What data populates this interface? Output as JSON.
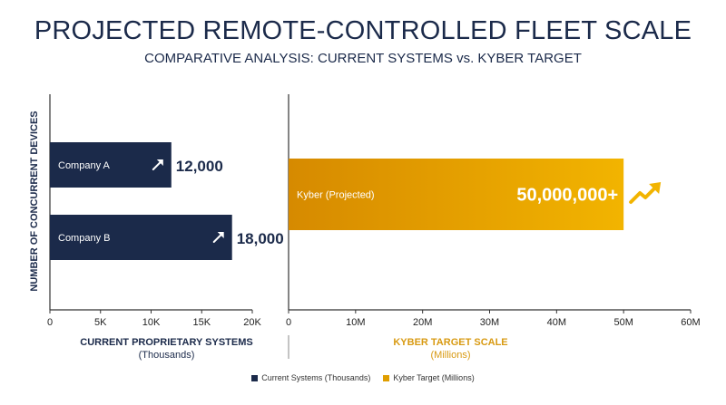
{
  "title": "PROJECTED REMOTE-CONTROLLED FLEET SCALE",
  "subtitle": "COMPARATIVE ANALYSIS: CURRENT SYSTEMS vs. KYBER TARGET",
  "y_axis_label": "NUMBER OF CONCURRENT DEVICES",
  "colors": {
    "navy": "#1b2a4a",
    "gold_start": "#d68a00",
    "gold_end": "#f2b400",
    "gold_text": "#d89a12",
    "axis": "#333333"
  },
  "chart_data": [
    {
      "type": "bar",
      "orientation": "horizontal",
      "categories": [
        "Company A",
        "Company B"
      ],
      "values": [
        12000,
        18000
      ],
      "value_labels": [
        "12,000",
        "18,000"
      ],
      "xlim": [
        0,
        20000
      ],
      "ticks": [
        0,
        5000,
        10000,
        15000,
        20000
      ],
      "tick_labels": [
        "0",
        "5K",
        "10K",
        "15K",
        "20K"
      ],
      "xlabel": "CURRENT PROPRIETARY SYSTEMS",
      "xlabel_unit": "(Thousands)",
      "color": "#1b2a4a",
      "icon": "trend-arrow-icon"
    },
    {
      "type": "bar",
      "orientation": "horizontal",
      "categories": [
        "Kyber (Projected)"
      ],
      "values": [
        50000000
      ],
      "value_labels": [
        "50,000,000+"
      ],
      "xlim": [
        0,
        60000000
      ],
      "ticks": [
        0,
        10000000,
        20000000,
        30000000,
        40000000,
        50000000,
        60000000
      ],
      "tick_labels": [
        "0",
        "10M",
        "20M",
        "30M",
        "40M",
        "50M",
        "60M"
      ],
      "xlabel": "KYBER TARGET SCALE",
      "xlabel_unit": "(Millions)",
      "color": "#e09e00",
      "icon": "growth-chart-icon"
    }
  ],
  "legend": [
    {
      "label": "Current Systems (Thousands)",
      "color": "#1b2a4a"
    },
    {
      "label": "Kyber Target (Millions)",
      "color": "#e09e00"
    }
  ]
}
